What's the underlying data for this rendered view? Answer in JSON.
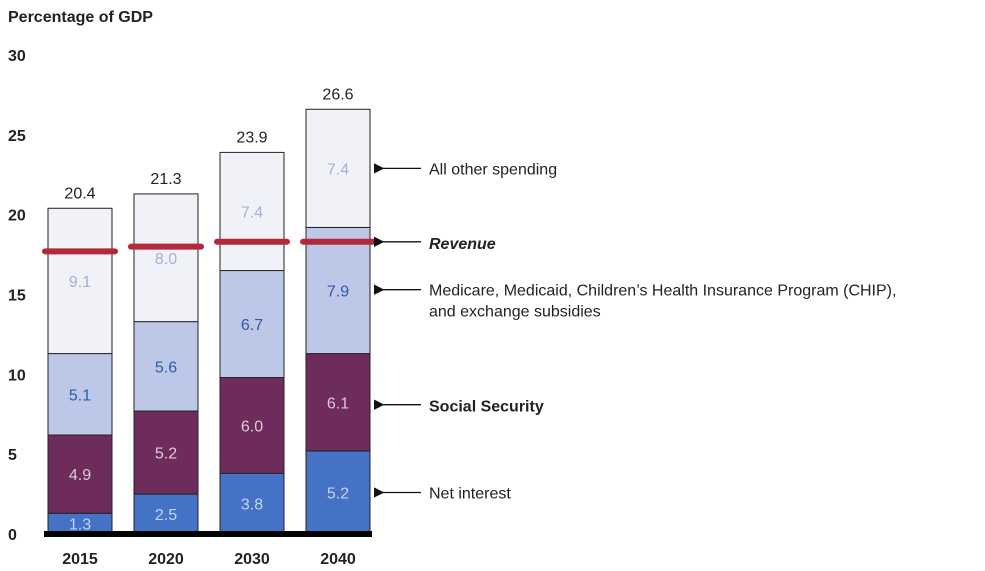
{
  "chart_data": {
    "type": "bar",
    "stacked": true,
    "ylabel": "Percentage of GDP",
    "ylim": [
      0,
      30
    ],
    "yticks": [
      "0",
      "5",
      "10",
      "15",
      "20",
      "25",
      "30"
    ],
    "categories": [
      "2015",
      "2020",
      "2030",
      "2040"
    ],
    "series": [
      {
        "name": "Net interest",
        "values": [
          1.3,
          2.5,
          3.8,
          5.2
        ],
        "labels": [
          "1.3",
          "2.5",
          "3.8",
          "5.2"
        ],
        "color": "#4472c4",
        "label_color": "#c8d4ee"
      },
      {
        "name": "Social Security",
        "values": [
          4.9,
          5.2,
          6.0,
          6.1
        ],
        "labels": [
          "4.9",
          "5.2",
          "6.0",
          "6.1"
        ],
        "color": "#6e2c5c",
        "label_color": "#dccbd6"
      },
      {
        "name": "Medicare, Medicaid, Children’s Health Insurance Program (CHIP), and exchange subsidies",
        "values": [
          5.1,
          5.6,
          6.7,
          7.9
        ],
        "labels": [
          "5.1",
          "5.6",
          "6.7",
          "7.9"
        ],
        "color": "#bdc8e8",
        "label_color": "#2e5aa8"
      },
      {
        "name": "All other spending",
        "values": [
          9.1,
          8.0,
          7.4,
          7.4
        ],
        "labels": [
          "9.1",
          "8.0",
          "7.4",
          "7.4"
        ],
        "color": "#f1f2f8",
        "label_color": "#a3b0d8"
      }
    ],
    "totals": [
      "20.4",
      "21.3",
      "23.9",
      "26.6"
    ],
    "revenue": {
      "name": "Revenue",
      "values": [
        17.7,
        18.0,
        18.3,
        18.3
      ],
      "color": "#b5283b"
    },
    "annotations": [
      {
        "text_lines": [
          "All other spending"
        ],
        "at": 22.9,
        "bold": false
      },
      {
        "text_lines": [
          "Revenue"
        ],
        "at": 18.3,
        "bold": true,
        "italic": true,
        "color": "#b5283b"
      },
      {
        "text_lines": [
          "Medicare, Medicaid, Children’s Health Insurance Program (CHIP),",
          "and exchange subsidies"
        ],
        "at": 15.3,
        "bold": false
      },
      {
        "text_lines": [
          "Social Security"
        ],
        "at": 8.1,
        "bold": true
      },
      {
        "text_lines": [
          "Net interest"
        ],
        "at": 2.6,
        "bold": false
      }
    ],
    "grid": false,
    "legend": "right-annotations"
  }
}
